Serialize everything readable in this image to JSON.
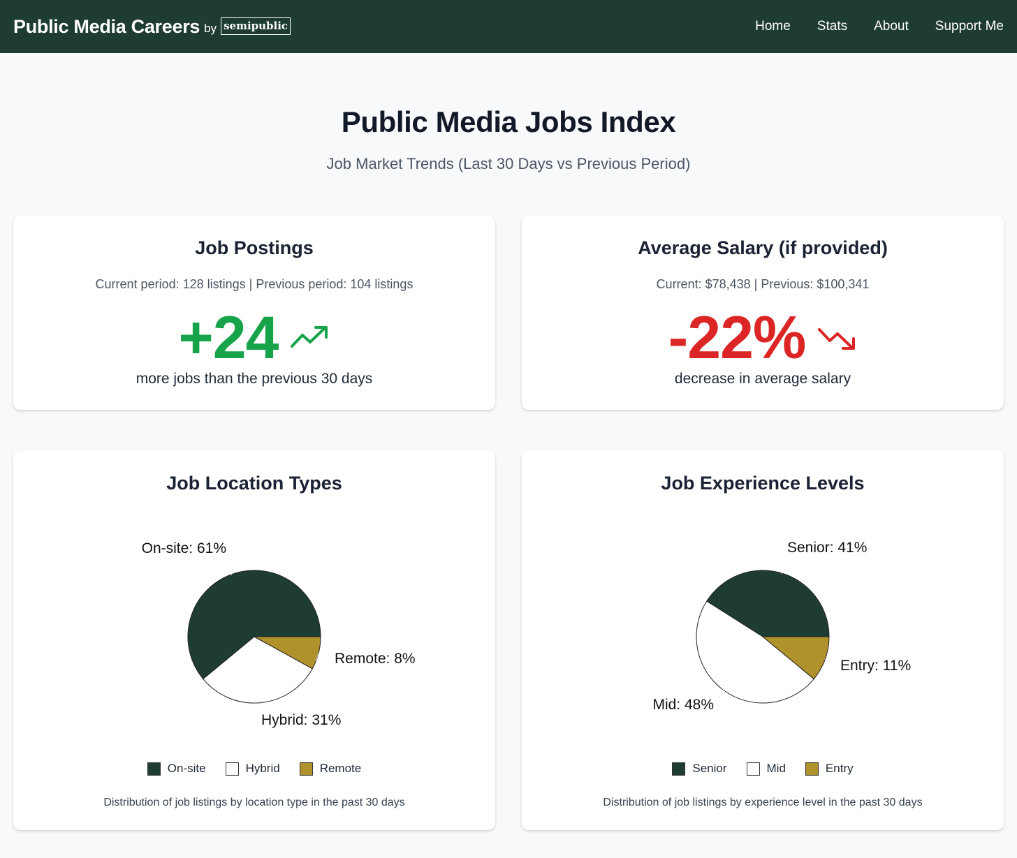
{
  "colors": {
    "nav_bg": "#1e3c32",
    "up": "#16a34a",
    "down": "#dc2626",
    "dark_green": "#1e3c32",
    "white": "#ffffff",
    "gold": "#b0922c"
  },
  "nav": {
    "brand": "Public Media Careers",
    "by": "by",
    "logo_text": "semipublic",
    "links": [
      "Home",
      "Stats",
      "About",
      "Support Me"
    ]
  },
  "hero": {
    "title": "Public Media Jobs Index",
    "subtitle": "Job Market Trends (Last 30 Days vs Previous Period)"
  },
  "postings": {
    "title": "Job Postings",
    "summary": "Current period: 128 listings | Previous period: 104 listings",
    "delta": "+24",
    "trend_icon": "trending-up-icon",
    "note": "more jobs than the previous 30 days"
  },
  "salary": {
    "title": "Average Salary (if provided)",
    "summary": "Current: $78,438 | Previous: $100,341",
    "delta": "-22%",
    "trend_icon": "trending-down-icon",
    "note": "decrease in average salary"
  },
  "location": {
    "title": "Job Location Types",
    "caption": "Distribution of job listings by location type in the past 30 days"
  },
  "experience": {
    "title": "Job Experience Levels",
    "caption": "Distribution of job listings by experience level in the past 30 days"
  },
  "chart_data": [
    {
      "type": "pie",
      "title": "Job Location Types",
      "categories": [
        "On-site",
        "Hybrid",
        "Remote"
      ],
      "values": [
        61,
        31,
        8
      ],
      "labels": [
        "On-site: 61%",
        "Hybrid: 31%",
        "Remote: 8%"
      ],
      "colors": [
        "#1e3c32",
        "#ffffff",
        "#b0922c"
      ],
      "legend": "bottom"
    },
    {
      "type": "pie",
      "title": "Job Experience Levels",
      "categories": [
        "Senior",
        "Mid",
        "Entry"
      ],
      "values": [
        41,
        48,
        11
      ],
      "labels": [
        "Senior: 41%",
        "Mid: 48%",
        "Entry: 11%"
      ],
      "colors": [
        "#1e3c32",
        "#ffffff",
        "#b0922c"
      ],
      "legend": "bottom"
    }
  ]
}
